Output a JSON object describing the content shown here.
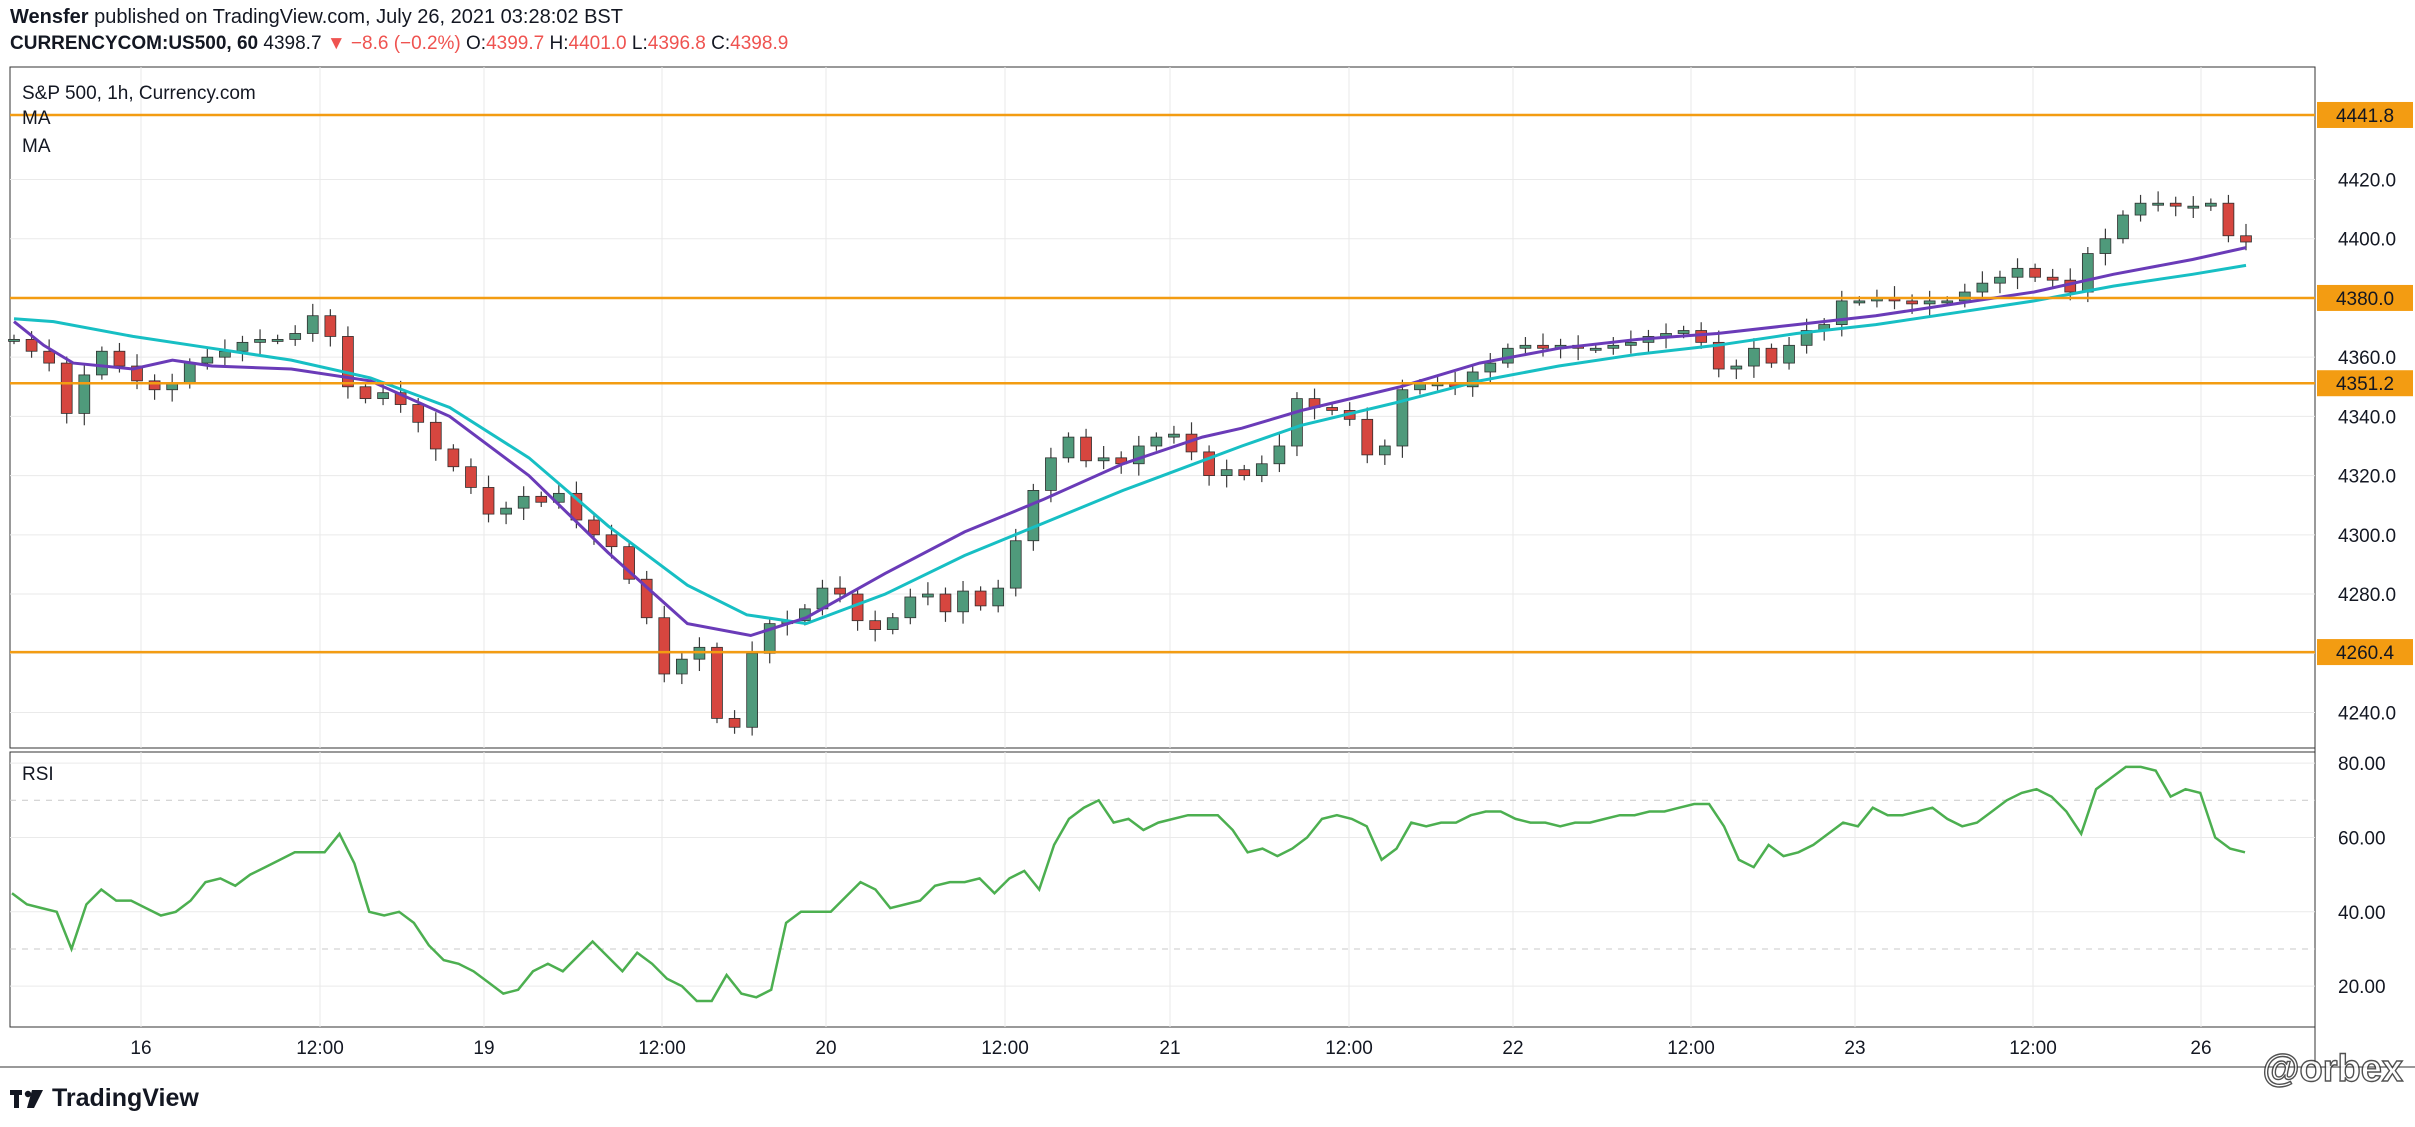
{
  "header": {
    "author": "Wensfer",
    "published_text": "published on TradingView.com, July 26, 2021 03:28:02 BST",
    "symbol": "CURRENCYCOM:US500, 60",
    "last": "4398.7",
    "change_arrow": "▼",
    "change": "−8.6 (−0.2%)",
    "o_label": "O:",
    "o_value": "4399.7",
    "h_label": "H:",
    "h_value": "4401.0",
    "l_label": "L:",
    "l_value": "4396.8",
    "c_label": "C:",
    "c_value": "4398.9"
  },
  "main_pane": {
    "title": "S&P 500, 1h, Currency.com",
    "indicator1": "MA",
    "indicator2": "MA"
  },
  "rsi_pane": {
    "title": "RSI"
  },
  "footer": {
    "brand": "TradingView",
    "watermark": "@orbex"
  },
  "colors": {
    "up": "#4f9a7b",
    "down": "#d6463f",
    "ma_fast": "#6a3bb8",
    "ma_slow": "#17bfc4",
    "level": "#f39c12",
    "rsi": "#4caf50",
    "grid": "#eaeaea"
  },
  "chart_data": [
    {
      "type": "candlestick",
      "title": "S&P 500, 1h, Currency.com",
      "x_tick_labels": [
        "16",
        "12:00",
        "19",
        "12:00",
        "20",
        "12:00",
        "21",
        "12:00",
        "22",
        "12:00",
        "23",
        "12:00",
        "26"
      ],
      "y_ticks": [
        4240.0,
        4260.0,
        4280.0,
        4300.0,
        4320.0,
        4340.0,
        4360.0,
        4380.0,
        4400.0,
        4420.0
      ],
      "ylim": [
        4228,
        4458
      ],
      "horizontal_levels": [
        4441.8,
        4380.0,
        4351.2,
        4260.4
      ],
      "series": [
        {
          "name": "MA",
          "type": "line",
          "color": "#6a3bb8"
        },
        {
          "name": "MA",
          "type": "line",
          "color": "#17bfc4"
        }
      ],
      "candles_close": [
        4366,
        4362,
        4358,
        4341,
        4354,
        4362,
        4357,
        4352,
        4349,
        4351,
        4358,
        4360,
        4362,
        4365,
        4366,
        4366,
        4368,
        4374,
        4367,
        4350,
        4346,
        4348,
        4344,
        4338,
        4329,
        4323,
        4316,
        4307,
        4309,
        4313,
        4311,
        4314,
        4305,
        4300,
        4296,
        4285,
        4272,
        4253,
        4258,
        4262,
        4238,
        4235,
        4260,
        4270,
        4271,
        4275,
        4282,
        4280,
        4271,
        4268,
        4272,
        4279,
        4280,
        4274,
        4281,
        4276,
        4282,
        4298,
        4315,
        4326,
        4333,
        4325,
        4326,
        4324,
        4330,
        4333,
        4334,
        4328,
        4320,
        4322,
        4320,
        4324,
        4330,
        4346,
        4343,
        4342,
        4339,
        4327,
        4330,
        4349,
        4351,
        4351,
        4350,
        4355,
        4358,
        4363,
        4364,
        4363,
        4364,
        4363,
        4363,
        4364,
        4365,
        4367,
        4368,
        4369,
        4365,
        4356,
        4357,
        4363,
        4358,
        4364,
        4369,
        4371,
        4379,
        4379,
        4380,
        4379,
        4378,
        4379,
        4379,
        4382,
        4385,
        4387,
        4390,
        4387,
        4386,
        4382,
        4395,
        4400,
        4408,
        4412,
        4412,
        4411,
        4411,
        4412,
        4401,
        4398.9
      ],
      "ma_fast_points": [
        [
          0,
          4372
        ],
        [
          15,
          4364
        ],
        [
          30,
          4358
        ],
        [
          60,
          4356
        ],
        [
          80,
          4359
        ],
        [
          100,
          4357
        ],
        [
          140,
          4356
        ],
        [
          180,
          4352
        ],
        [
          220,
          4340
        ],
        [
          260,
          4320
        ],
        [
          300,
          4294
        ],
        [
          340,
          4270
        ],
        [
          372,
          4266
        ],
        [
          400,
          4272
        ],
        [
          440,
          4287
        ],
        [
          480,
          4301
        ],
        [
          520,
          4312
        ],
        [
          560,
          4324
        ],
        [
          600,
          4333
        ],
        [
          620,
          4336
        ],
        [
          650,
          4342
        ],
        [
          700,
          4350
        ],
        [
          740,
          4358
        ],
        [
          780,
          4363
        ],
        [
          820,
          4366
        ],
        [
          860,
          4368
        ],
        [
          900,
          4371
        ],
        [
          940,
          4374
        ],
        [
          980,
          4378
        ],
        [
          1020,
          4382
        ],
        [
          1060,
          4388
        ],
        [
          1100,
          4393
        ],
        [
          1127,
          4397
        ]
      ],
      "ma_slow_points": [
        [
          0,
          4373
        ],
        [
          20,
          4372
        ],
        [
          60,
          4367
        ],
        [
          100,
          4363
        ],
        [
          140,
          4359
        ],
        [
          180,
          4353
        ],
        [
          220,
          4343
        ],
        [
          260,
          4326
        ],
        [
          300,
          4303
        ],
        [
          340,
          4283
        ],
        [
          370,
          4273
        ],
        [
          400,
          4270
        ],
        [
          440,
          4280
        ],
        [
          480,
          4293
        ],
        [
          520,
          4304
        ],
        [
          560,
          4315
        ],
        [
          600,
          4325
        ],
        [
          620,
          4330
        ],
        [
          650,
          4337
        ],
        [
          700,
          4345
        ],
        [
          740,
          4352
        ],
        [
          780,
          4357
        ],
        [
          820,
          4361
        ],
        [
          860,
          4364
        ],
        [
          900,
          4368
        ],
        [
          940,
          4371
        ],
        [
          980,
          4375
        ],
        [
          1020,
          4379
        ],
        [
          1060,
          4384
        ],
        [
          1100,
          4388
        ],
        [
          1127,
          4391
        ]
      ]
    },
    {
      "type": "line",
      "title": "RSI",
      "y_ticks": [
        20.0,
        40.0,
        60.0,
        80.0
      ],
      "ylim": [
        9,
        83
      ],
      "bands": [
        30,
        70
      ],
      "series": [
        {
          "name": "RSI",
          "values": [
            45,
            42,
            41,
            40,
            30,
            42,
            46,
            43,
            43,
            41,
            39,
            40,
            43,
            48,
            49,
            47,
            50,
            52,
            54,
            56,
            56,
            56,
            61,
            53,
            40,
            39,
            40,
            37,
            31,
            27,
            26,
            24,
            21,
            18,
            19,
            24,
            26,
            24,
            28,
            32,
            28,
            24,
            29,
            26,
            22,
            20,
            16,
            16,
            23,
            18,
            17,
            19,
            37,
            40,
            40,
            40,
            44,
            48,
            46,
            41,
            42,
            43,
            47,
            48,
            48,
            49,
            45,
            49,
            51,
            46,
            58,
            65,
            68,
            70,
            64,
            65,
            62,
            64,
            65,
            66,
            66,
            66,
            62,
            56,
            57,
            55,
            57,
            60,
            65,
            66,
            65,
            63,
            54,
            57,
            64,
            63,
            64,
            64,
            66,
            67,
            67,
            65,
            64,
            64,
            63,
            64,
            64,
            65,
            66,
            66,
            67,
            67,
            68,
            69,
            69,
            63,
            54,
            52,
            58,
            55,
            56,
            58,
            61,
            64,
            63,
            68,
            66,
            66,
            67,
            68,
            65,
            63,
            64,
            67,
            70,
            72,
            73,
            71,
            67,
            61,
            73,
            76,
            79,
            79,
            78,
            71,
            73,
            72,
            60,
            57,
            56
          ]
        }
      ]
    }
  ]
}
